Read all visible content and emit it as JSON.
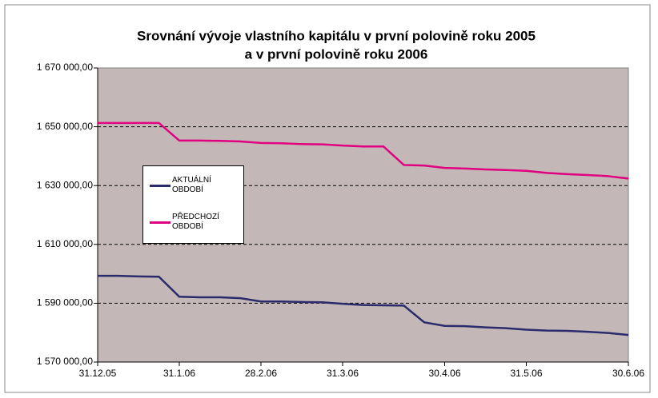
{
  "chart_data": {
    "type": "line",
    "title": [
      "Srovnání vývoje vlastního kapitálu v první polovině roku 2005",
      "a v první polovině roku 2006"
    ],
    "categories": [
      "31.12.05",
      null,
      null,
      null,
      "31.1.06",
      null,
      null,
      null,
      "28.2.06",
      null,
      null,
      null,
      "31.3.06",
      null,
      null,
      null,
      null,
      "30.4.06",
      null,
      null,
      null,
      "31.5.06",
      null,
      null,
      null,
      null,
      "30.6.06"
    ],
    "series": [
      {
        "name": "AKTUÁLNÍ OBDOBÍ",
        "color": "#2b2b6b",
        "values": [
          1599300,
          1599300,
          1599100,
          1599000,
          1592200,
          1592000,
          1592000,
          1591700,
          1590600,
          1590600,
          1590400,
          1590300,
          1589800,
          1589400,
          1589300,
          1589200,
          1583500,
          1582300,
          1582200,
          1581800,
          1581500,
          1581000,
          1580700,
          1580600,
          1580300,
          1579900,
          1579200
        ]
      },
      {
        "name": "PŘEDCHOZÍ OBDOBÍ",
        "color": "#e0007f",
        "values": [
          1651300,
          1651300,
          1651300,
          1651300,
          1645300,
          1645300,
          1645200,
          1645000,
          1644500,
          1644400,
          1644100,
          1644000,
          1643600,
          1643300,
          1643300,
          1637000,
          1636800,
          1636000,
          1635800,
          1635500,
          1635300,
          1635000,
          1634300,
          1633900,
          1633600,
          1633200,
          1632400
        ]
      }
    ],
    "ylim": [
      1570000,
      1670000
    ],
    "yticks": [
      {
        "value": 1570000,
        "label": "1 570 000,00"
      },
      {
        "value": 1590000,
        "label": "1 590 000,00"
      },
      {
        "value": 1610000,
        "label": "1 610 000,00"
      },
      {
        "value": 1630000,
        "label": "1 630 000,00"
      },
      {
        "value": 1650000,
        "label": "1 650 000,00"
      },
      {
        "value": 1670000,
        "label": "1 670 000,00"
      }
    ],
    "grid": true
  }
}
